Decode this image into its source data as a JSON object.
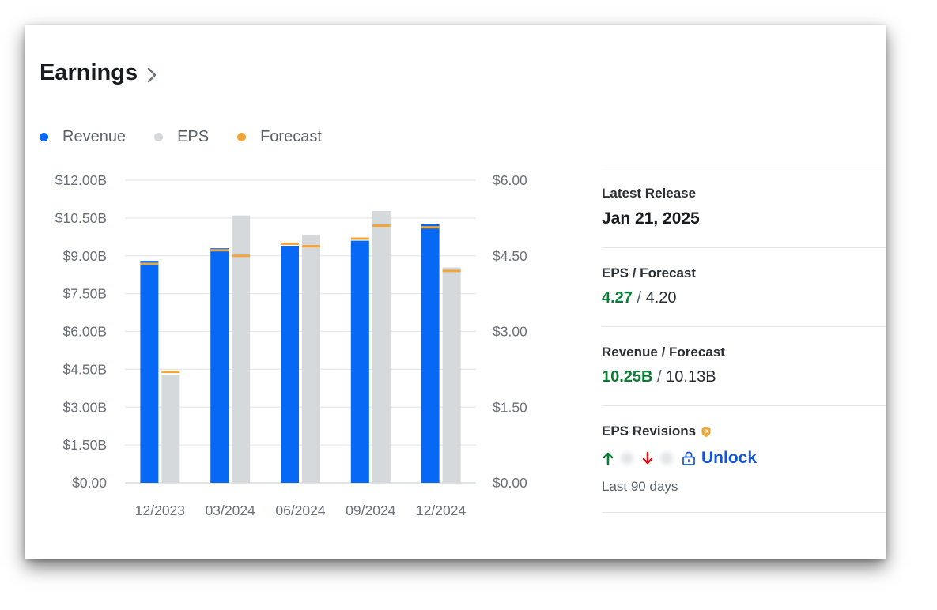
{
  "header": {
    "title": "Earnings"
  },
  "legend": [
    {
      "label": "Revenue",
      "color": "#0668f5"
    },
    {
      "label": "EPS",
      "color": "#d6d9dc"
    },
    {
      "label": "Forecast",
      "color": "#f0a53a"
    }
  ],
  "chart_data": {
    "type": "bar",
    "categories": [
      "12/2023",
      "03/2024",
      "06/2024",
      "09/2024",
      "12/2024"
    ],
    "left_axis": {
      "ticks": [
        "$12.00B",
        "$10.50B",
        "$9.00B",
        "$7.50B",
        "$6.00B",
        "$4.50B",
        "$3.00B",
        "$1.50B",
        "$0.00"
      ],
      "ylim": [
        0,
        12
      ]
    },
    "right_axis": {
      "ticks": [
        "$6.00",
        "$4.50",
        "$3.00",
        "$1.50",
        "$0.00"
      ],
      "ylim": [
        0,
        6
      ]
    },
    "series": [
      {
        "name": "Revenue",
        "axis": "left",
        "color": "#0668f5",
        "values": [
          8.8,
          9.3,
          9.4,
          9.6,
          10.25
        ]
      },
      {
        "name": "EPS",
        "axis": "right",
        "color": "#d6d9dc",
        "values": [
          2.14,
          5.3,
          4.91,
          5.39,
          4.27
        ]
      }
    ],
    "forecast": {
      "color": "#f0a53a",
      "revenue": [
        8.68,
        9.22,
        9.48,
        9.68,
        10.13
      ],
      "eps": [
        2.2,
        4.5,
        4.69,
        5.1,
        4.2
      ]
    },
    "grid": true
  },
  "panel": {
    "latest_release": {
      "label": "Latest Release",
      "value": "Jan 21, 2025"
    },
    "eps_forecast": {
      "label": "EPS / Forecast",
      "actual": "4.27",
      "sep": " / ",
      "forecast": "4.20"
    },
    "revenue_forecast": {
      "label": "Revenue / Forecast",
      "actual": "10.25B",
      "sep": " / ",
      "forecast": "10.13B"
    },
    "eps_revisions": {
      "label": "EPS Revisions",
      "unlock": "Unlock",
      "period": "Last 90 days"
    }
  }
}
